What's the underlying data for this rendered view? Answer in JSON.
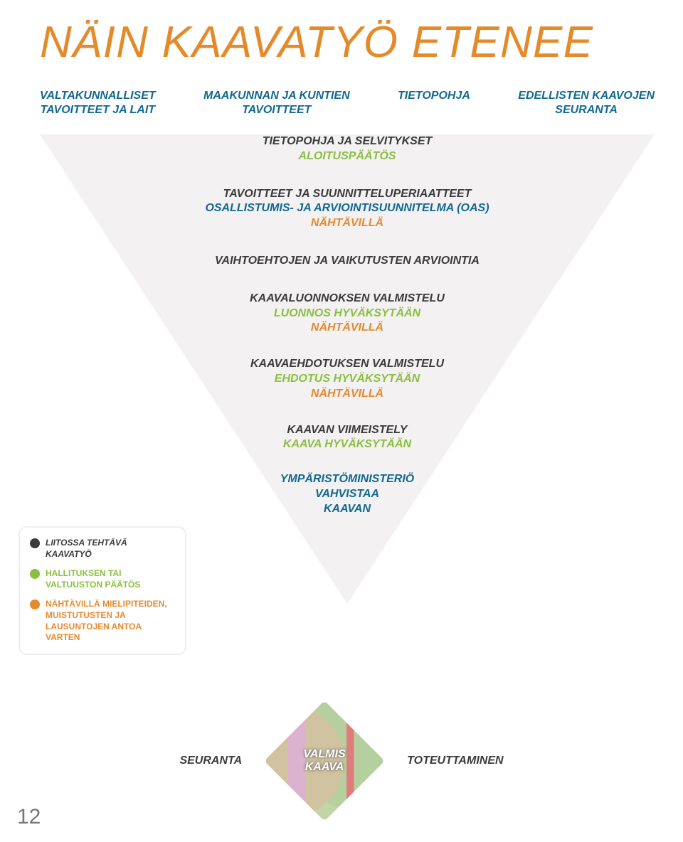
{
  "colors": {
    "title": "#e48a2a",
    "blue": "#12698f",
    "text": "#3b3b3b",
    "green": "#8bbf3f",
    "orange": "#e68a2e",
    "funnel_bg": "#f3f1f2",
    "pagenum": "#7d7d7d"
  },
  "title": "NÄIN KAAVATYÖ ETENEE",
  "top_columns": [
    {
      "l1": "VALTAKUNNALLISET",
      "l2": "TAVOITTEET JA LAIT"
    },
    {
      "l1": "MAAKUNNAN JA KUNTIEN",
      "l2": "TAVOITTEET"
    },
    {
      "l1": "TIETOPOHJA",
      "l2": ""
    },
    {
      "l1": "EDELLISTEN KAAVOJEN",
      "l2": "SEURANTA"
    }
  ],
  "stages": [
    {
      "lines": [
        {
          "t": "TIETOPOHJA JA SELVITYKSET",
          "c": "text"
        },
        {
          "t": "ALOITUSPÄÄTÖS",
          "c": "green"
        }
      ]
    },
    {
      "lines": [
        {
          "t": "TAVOITTEET JA SUUNNITTELUPERIAATTEET",
          "c": "text"
        },
        {
          "t": "OSALLISTUMIS- JA ARVIOINTISUUNNITELMA (OAS)",
          "c": "blue"
        },
        {
          "t": "NÄHTÄVILLÄ",
          "c": "orange"
        }
      ]
    },
    {
      "lines": [
        {
          "t": "VAIHTOEHTOJEN JA VAIKUTUSTEN ARVIOINTIA",
          "c": "text"
        }
      ]
    },
    {
      "lines": [
        {
          "t": "KAAVALUONNOKSEN VALMISTELU",
          "c": "text"
        },
        {
          "t": "LUONNOS HYVÄKSYTÄÄN",
          "c": "green"
        },
        {
          "t": "NÄHTÄVILLÄ",
          "c": "orange"
        }
      ]
    },
    {
      "lines": [
        {
          "t": "KAAVAEHDOTUKSEN VALMISTELU",
          "c": "text"
        },
        {
          "t": "EHDOTUS HYVÄKSYTÄÄN",
          "c": "green"
        },
        {
          "t": "NÄHTÄVILLÄ",
          "c": "orange"
        }
      ]
    },
    {
      "lines": [
        {
          "t": "KAAVAN VIIMEISTELY",
          "c": "text"
        },
        {
          "t": "KAAVA HYVÄKSYTÄÄN",
          "c": "green"
        }
      ]
    },
    {
      "lines": [
        {
          "t": "YMPÄRISTÖMINISTERIÖ",
          "c": "blue"
        },
        {
          "t": "VAHVISTAA",
          "c": "blue"
        },
        {
          "t": "KAAVAN",
          "c": "blue"
        }
      ]
    }
  ],
  "legend": [
    {
      "dot": "#3b3b3b",
      "style": "it",
      "lines": [
        "LIITOSSA TEHTÄVÄ",
        "KAAVATYÖ"
      ]
    },
    {
      "dot": "#8bbf3f",
      "style": "",
      "lines": [
        "HALLITUKSEN TAI",
        "VALTUUSTON PÄÄTÖS"
      ],
      "color": "#8bbf3f"
    },
    {
      "dot": "#e68a2e",
      "style": "",
      "lines": [
        "NÄHTÄVILLÄ MIELIPITEIDEN,",
        "MUISTUTUSTEN JA",
        "LAUSUNTOJEN ANTOA",
        "VARTEN"
      ],
      "color": "#e68a2e"
    }
  ],
  "bottom": {
    "left": "SEURANTA",
    "diamond_l1": "VALMIS",
    "diamond_l2": "KAAVA",
    "right": "TOTEUTTAMINEN"
  },
  "page_number": "12"
}
